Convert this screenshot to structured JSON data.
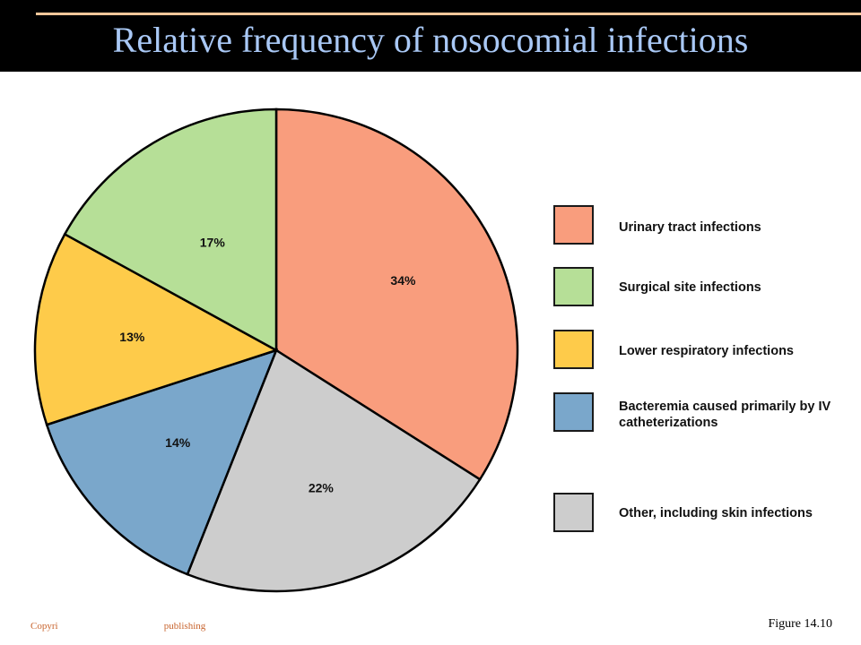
{
  "title": "Relative frequency of nosocomial infections",
  "chart_data": {
    "type": "pie",
    "title": "Relative frequency of nosocomial infections",
    "legend_position": "right",
    "slices": [
      {
        "label": "Urinary tract infections",
        "value": 34,
        "display": "34%",
        "color": "#f99d7d"
      },
      {
        "label": "Other, including skin infections",
        "value": 22,
        "display": "22%",
        "color": "#cdcdcd"
      },
      {
        "label": "Bacteremia caused primarily by IV catheterizations",
        "value": 14,
        "display": "14%",
        "color": "#7aa7cb"
      },
      {
        "label": "Lower respiratory infections",
        "value": 13,
        "display": "13%",
        "color": "#fecb4a"
      },
      {
        "label": "Surgical site infections",
        "value": 17,
        "display": "17%",
        "color": "#b6df97"
      }
    ]
  },
  "legend": [
    {
      "label": "Urinary tract infections",
      "color": "#f99d7d"
    },
    {
      "label": "Surgical site infections",
      "color": "#b6df97"
    },
    {
      "label": "Lower respiratory infections",
      "color": "#fecb4a"
    },
    {
      "label": "Bacteremia caused primarily by IV catheterizations",
      "color": "#7aa7cb"
    },
    {
      "label": "Other, including skin infections",
      "color": "#cdcdcd"
    }
  ],
  "footer": {
    "copyright": "Copyri                                           publishing",
    "figure": "Figure 14.10"
  }
}
